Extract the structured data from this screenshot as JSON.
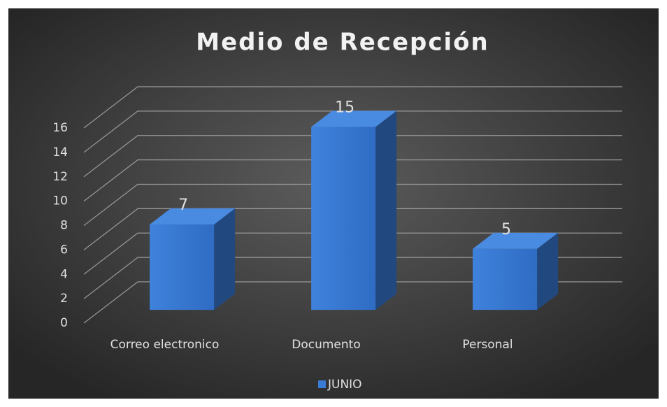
{
  "chart_data": {
    "type": "bar3d",
    "title": "Medio de Recepción",
    "categories": [
      "Correo electronico",
      "Documento",
      "Personal"
    ],
    "series": [
      {
        "name": "JUNIO",
        "color": "#3a7bd5",
        "values": [
          7,
          15,
          5
        ]
      }
    ],
    "ylim": [
      0,
      16
    ],
    "yticks": [
      0,
      2,
      4,
      6,
      8,
      10,
      12,
      14,
      16
    ],
    "grid": true,
    "legend": "bottom"
  }
}
